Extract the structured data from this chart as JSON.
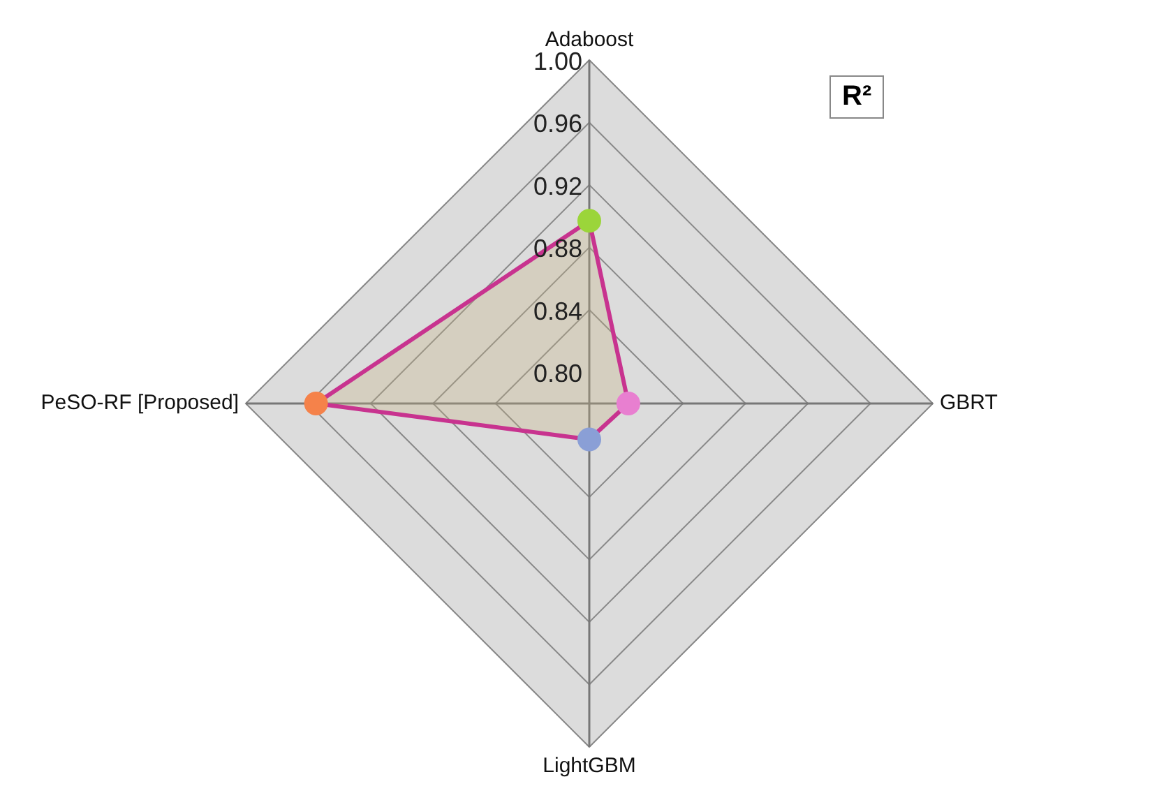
{
  "chart_data": {
    "type": "radar",
    "title": "R²",
    "categories": [
      "Adaboost",
      "GBRT",
      "LightGBM",
      "PeSO-RF [Proposed]"
    ],
    "series": [
      {
        "color": "#c8338f",
        "colors": [
          "#9bd53a",
          "#e87fd0",
          "#8a9fd6",
          "#f5824a"
        ],
        "values": [
          0.897,
          0.805,
          0.803,
          0.955
        ]
      }
    ],
    "ylim": [
      0.78,
      1.0
    ],
    "yticks": [
      {
        "value": 0.8,
        "label": "0.80"
      },
      0.84,
      0.88,
      0.92,
      0.96,
      {
        "value": 1,
        "label": "1.00"
      }
    ],
    "grid": true,
    "legend": false,
    "marker": "circle"
  }
}
